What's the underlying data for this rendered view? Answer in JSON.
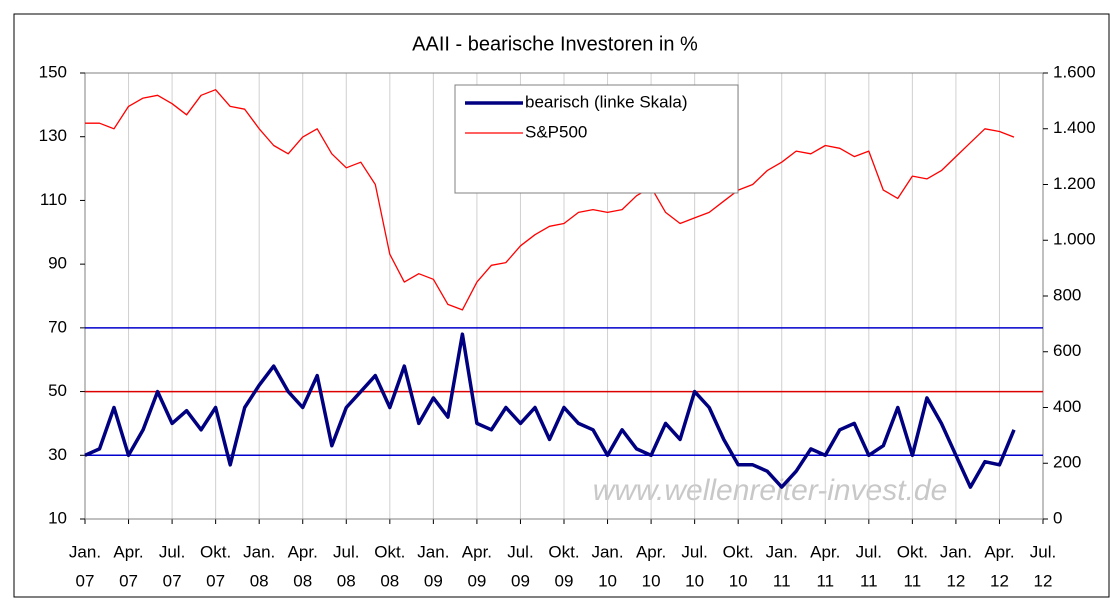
{
  "chart_data": {
    "type": "line",
    "title": "AAII - bearische Investoren in %",
    "x": [
      "2007-01",
      "2007-02",
      "2007-03",
      "2007-04",
      "2007-05",
      "2007-06",
      "2007-07",
      "2007-08",
      "2007-09",
      "2007-10",
      "2007-11",
      "2007-12",
      "2008-01",
      "2008-02",
      "2008-03",
      "2008-04",
      "2008-05",
      "2008-06",
      "2008-07",
      "2008-08",
      "2008-09",
      "2008-10",
      "2008-11",
      "2008-12",
      "2009-01",
      "2009-02",
      "2009-03",
      "2009-04",
      "2009-05",
      "2009-06",
      "2009-07",
      "2009-08",
      "2009-09",
      "2009-10",
      "2009-11",
      "2009-12",
      "2010-01",
      "2010-02",
      "2010-03",
      "2010-04",
      "2010-05",
      "2010-06",
      "2010-07",
      "2010-08",
      "2010-09",
      "2010-10",
      "2010-11",
      "2010-12",
      "2011-01",
      "2011-02",
      "2011-03",
      "2011-04",
      "2011-05",
      "2011-06",
      "2011-07",
      "2011-08",
      "2011-09",
      "2011-10",
      "2011-11",
      "2011-12",
      "2012-01",
      "2012-02",
      "2012-03",
      "2012-04",
      "2012-05"
    ],
    "series": [
      {
        "name": "bearisch (linke Skala)",
        "color": "#000080",
        "axis": "y",
        "values": [
          30,
          32,
          45,
          30,
          38,
          50,
          40,
          44,
          38,
          45,
          27,
          45,
          52,
          58,
          50,
          45,
          55,
          33,
          45,
          50,
          55,
          45,
          58,
          40,
          48,
          42,
          68,
          40,
          38,
          45,
          40,
          45,
          35,
          45,
          40,
          38,
          30,
          38,
          32,
          30,
          40,
          35,
          50,
          45,
          35,
          27,
          27,
          25,
          20,
          25,
          32,
          30,
          38,
          40,
          30,
          33,
          45,
          30,
          48,
          40,
          30,
          20,
          28,
          27,
          38
        ]
      },
      {
        "name": "S&P500",
        "color": "#ff0000",
        "axis": "y2",
        "values": [
          1420,
          1420,
          1400,
          1480,
          1510,
          1520,
          1490,
          1450,
          1520,
          1540,
          1480,
          1470,
          1400,
          1340,
          1310,
          1370,
          1400,
          1310,
          1260,
          1280,
          1200,
          950,
          850,
          880,
          860,
          770,
          750,
          850,
          910,
          920,
          980,
          1020,
          1050,
          1060,
          1100,
          1110,
          1100,
          1110,
          1160,
          1190,
          1100,
          1060,
          1080,
          1100,
          1140,
          1180,
          1200,
          1250,
          1280,
          1320,
          1310,
          1340,
          1330,
          1300,
          1320,
          1180,
          1150,
          1230,
          1220,
          1250,
          1300,
          1350,
          1400,
          1390,
          1370
        ]
      }
    ],
    "xlim": [
      "2007-01",
      "2012-07"
    ],
    "xticks": [
      {
        "value": "2007-01",
        "label": [
          "Jan.",
          "07"
        ]
      },
      {
        "value": "2007-04",
        "label": [
          "Apr.",
          "07"
        ]
      },
      {
        "value": "2007-07",
        "label": [
          "Jul.",
          "07"
        ]
      },
      {
        "value": "2007-10",
        "label": [
          "Okt.",
          "07"
        ]
      },
      {
        "value": "2008-01",
        "label": [
          "Jan.",
          "08"
        ]
      },
      {
        "value": "2008-04",
        "label": [
          "Apr.",
          "08"
        ]
      },
      {
        "value": "2008-07",
        "label": [
          "Jul.",
          "08"
        ]
      },
      {
        "value": "2008-10",
        "label": [
          "Okt.",
          "08"
        ]
      },
      {
        "value": "2009-01",
        "label": [
          "Jan.",
          "09"
        ]
      },
      {
        "value": "2009-04",
        "label": [
          "Apr.",
          "09"
        ]
      },
      {
        "value": "2009-07",
        "label": [
          "Jul.",
          "09"
        ]
      },
      {
        "value": "2009-10",
        "label": [
          "Okt.",
          "09"
        ]
      },
      {
        "value": "2010-01",
        "label": [
          "Jan.",
          "10"
        ]
      },
      {
        "value": "2010-04",
        "label": [
          "Apr.",
          "10"
        ]
      },
      {
        "value": "2010-07",
        "label": [
          "Jul.",
          "10"
        ]
      },
      {
        "value": "2010-10",
        "label": [
          "Okt.",
          "10"
        ]
      },
      {
        "value": "2011-01",
        "label": [
          "Jan.",
          "11"
        ]
      },
      {
        "value": "2011-04",
        "label": [
          "Apr.",
          "11"
        ]
      },
      {
        "value": "2011-07",
        "label": [
          "Jul.",
          "11"
        ]
      },
      {
        "value": "2011-10",
        "label": [
          "Okt.",
          "11"
        ]
      },
      {
        "value": "2012-01",
        "label": [
          "Jan.",
          "12"
        ]
      },
      {
        "value": "2012-04",
        "label": [
          "Apr.",
          "12"
        ]
      },
      {
        "value": "2012-07",
        "label": [
          "Jul.",
          "12"
        ]
      }
    ],
    "ylim": [
      10,
      150
    ],
    "yticks": [
      10,
      30,
      50,
      70,
      90,
      110,
      130,
      150
    ],
    "y2lim": [
      0,
      1600
    ],
    "y2ticks": [
      0,
      200,
      400,
      600,
      800,
      {
        "value": 1000,
        "label": "1.000"
      },
      {
        "value": 1200,
        "label": "1.200"
      },
      {
        "value": 1400,
        "label": "1.400"
      },
      {
        "value": 1600,
        "label": "1.600"
      }
    ],
    "reference_lines": [
      {
        "value": 70,
        "color": "#0000cc"
      },
      {
        "value": 50,
        "color": "#dd0000"
      },
      {
        "value": 30,
        "color": "#0000cc"
      }
    ],
    "grid": "x",
    "legend": "top",
    "annotations": [
      "www.wellenreiter-invest.de"
    ]
  }
}
